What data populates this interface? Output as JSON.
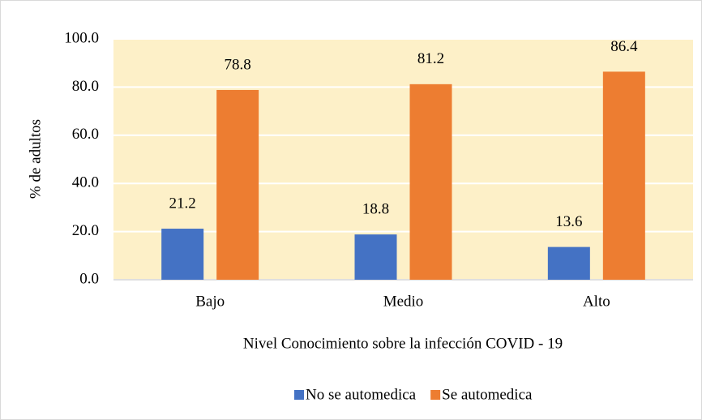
{
  "chart_data": {
    "type": "bar",
    "categories": [
      "Bajo",
      "Medio",
      "Alto"
    ],
    "series": [
      {
        "name": "No se automedica",
        "color": "#4472c4",
        "values": [
          21.2,
          18.8,
          13.6
        ]
      },
      {
        "name": "Se automedica",
        "color": "#ed7d31",
        "values": [
          78.8,
          81.2,
          86.4
        ]
      }
    ],
    "y_label": "% de adultos",
    "x_label": "Nivel Conocimiento sobre la infección COVID - 19",
    "ylim": [
      0,
      100
    ],
    "yticks": [
      {
        "value": 0,
        "label": "0.0"
      },
      {
        "value": 20,
        "label": "20.0"
      },
      {
        "value": 40,
        "label": "40.0"
      },
      {
        "value": 60,
        "label": "60.0"
      },
      {
        "value": 80,
        "label": "80.0"
      },
      {
        "value": 100,
        "label": "100.0"
      }
    ],
    "grid": true,
    "legend": "bottom"
  }
}
